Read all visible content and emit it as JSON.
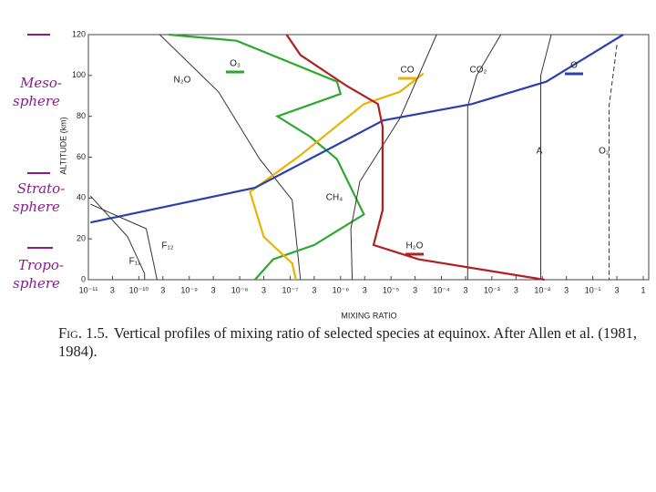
{
  "chart_data": {
    "type": "line",
    "x_scale": "log",
    "ylabel": "ALTITUDE (km)",
    "xlabel": "MIXING RATIO",
    "xlim": [
      1e-11,
      1
    ],
    "ylim": [
      0,
      120
    ],
    "yticks": [
      0,
      20,
      40,
      60,
      80,
      100,
      120
    ],
    "xticks": [
      {
        "value": 1e-11,
        "label": "10⁻¹¹"
      },
      {
        "value": 3e-11,
        "label": "3"
      },
      {
        "value": 1e-10,
        "label": "10⁻¹⁰"
      },
      {
        "value": 3e-10,
        "label": "3"
      },
      {
        "value": 1e-09,
        "label": "10⁻⁹"
      },
      {
        "value": 3e-09,
        "label": "3"
      },
      {
        "value": 1e-08,
        "label": "10⁻⁸"
      },
      {
        "value": 3e-08,
        "label": "3"
      },
      {
        "value": 1e-07,
        "label": "10⁻⁷"
      },
      {
        "value": 3e-07,
        "label": "3"
      },
      {
        "value": 1e-06,
        "label": "10⁻⁶"
      },
      {
        "value": 3e-06,
        "label": "3"
      },
      {
        "value": 1e-05,
        "label": "10⁻⁵"
      },
      {
        "value": 3e-05,
        "label": "3"
      },
      {
        "value": 0.0001,
        "label": "10⁻⁴"
      },
      {
        "value": 0.0003,
        "label": "3"
      },
      {
        "value": 0.001,
        "label": "10⁻³"
      },
      {
        "value": 0.003,
        "label": "3"
      },
      {
        "value": 0.01,
        "label": "10⁻²"
      },
      {
        "value": 0.03,
        "label": "3"
      },
      {
        "value": 0.1,
        "label": "10⁻¹"
      },
      {
        "value": 0.3,
        "label": "3"
      },
      1
    ],
    "series": [
      {
        "name": "N₂O",
        "color": "#333333",
        "x": [
          2.6e-10,
          3.8e-09,
          2.5e-08,
          1.1e-07,
          1.6e-07
        ],
        "values": [
          120,
          92,
          59,
          39,
          0
        ]
      },
      {
        "name": "O₃",
        "color": "#2ea82e",
        "underline": true,
        "x": [
          3.9e-10,
          8.7e-09,
          8.5e-07,
          1e-06,
          5.6e-08,
          2.5e-07,
          8.5e-07,
          2.9e-06,
          3e-07,
          4.6e-08,
          2e-08
        ],
        "values": [
          120,
          117,
          97,
          91,
          80,
          70,
          59,
          32,
          17,
          10,
          0
        ]
      },
      {
        "name": "CO",
        "color": "#e8b400",
        "underline": true,
        "x": [
          4.4e-05,
          1.5e-05,
          2.9e-06,
          1.6e-07,
          1.6e-08,
          3e-08,
          1.1e-07,
          1.3e-07
        ],
        "values": [
          101,
          92,
          86,
          61,
          43,
          21,
          8,
          0
        ]
      },
      {
        "name": "CO₂",
        "color": "#333333",
        "x": [
          0.0015,
          0.0005,
          0.00033,
          0.00033
        ],
        "values": [
          120,
          100,
          85,
          0
        ]
      },
      {
        "name": "O",
        "color": "#2a3fb0",
        "underline": true,
        "x": [
          1.1e-11,
          2e-08,
          7e-06,
          0.0004,
          0.012,
          0.4
        ],
        "values": [
          28,
          45,
          78,
          86,
          97,
          120
        ]
      },
      {
        "name": "A",
        "color": "#333333",
        "x": [
          0.015,
          0.0093,
          0.0093
        ],
        "values": [
          120,
          100,
          0
        ]
      },
      {
        "name": "O₂",
        "color": "#333333",
        "dashed": true,
        "x": [
          0.3,
          0.21,
          0.21
        ],
        "values": [
          115,
          85,
          0
        ]
      },
      {
        "name": "CH₄",
        "color": "#333333",
        "x": [
          8e-05,
          1.5e-05,
          2.4e-06,
          1.6e-06,
          1.7e-06
        ],
        "values": [
          120,
          79,
          48,
          25,
          0
        ]
      },
      {
        "name": "H₂O",
        "color": "#b02020",
        "underline": true,
        "x": [
          8.5e-08,
          1.6e-07,
          1.3e-06,
          5.5e-06,
          6.8e-06,
          6.8e-06,
          4.5e-06,
          3.5e-05,
          0.011
        ],
        "values": [
          120,
          110,
          95,
          86,
          75,
          34,
          17,
          10,
          0
        ]
      },
      {
        "name": "F₁₁",
        "color": "#333333",
        "x": [
          1.1e-11,
          6e-11,
          1.3e-10,
          1.3e-10
        ],
        "values": [
          41,
          21,
          3,
          0
        ]
      },
      {
        "name": "F₁₂",
        "color": "#333333",
        "x": [
          1.1e-11,
          1.4e-10,
          2.3e-10
        ],
        "values": [
          37,
          25,
          0
        ]
      }
    ],
    "annotations": [
      [
        "Meso-",
        "sphere"
      ],
      [
        "Strato-",
        "sphere"
      ],
      [
        "Tropo-",
        "sphere"
      ]
    ],
    "caption_label": "Fig. 1.5.",
    "caption": "Vertical profiles of mixing ratio of selected species at equinox. After Allen et al. (1981, 1984)."
  }
}
